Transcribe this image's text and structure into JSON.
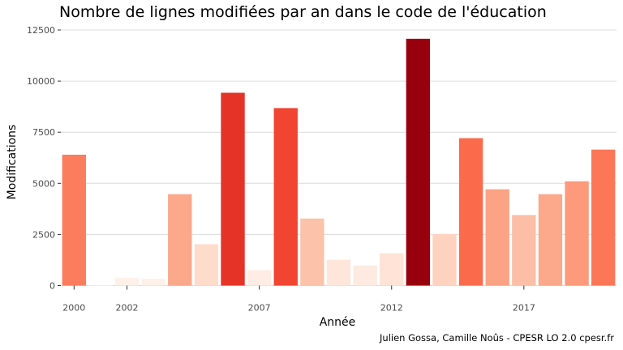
{
  "chart_data": {
    "type": "bar",
    "title": "Nombre de lignes modifiées par an dans le code de l'éducation",
    "xlabel": "Année",
    "ylabel": "Modifications",
    "caption": "Julien Gossa, Camille Noûs - CPESR LO 2.0 cpesr.fr",
    "x": [
      2000,
      2001,
      2002,
      2003,
      2004,
      2005,
      2006,
      2007,
      2008,
      2009,
      2010,
      2011,
      2012,
      2013,
      2014,
      2015,
      2016,
      2017,
      2018,
      2019,
      2020
    ],
    "values": [
      6400,
      30,
      380,
      340,
      4470,
      2020,
      9430,
      750,
      8680,
      3280,
      1260,
      980,
      1580,
      12070,
      2520,
      7210,
      4710,
      3450,
      4470,
      5100,
      6650
    ],
    "x_ticks": [
      "2000",
      "2002",
      "2007",
      "2012",
      "2017"
    ],
    "y_ticks": [
      "0",
      "2500",
      "5000",
      "7500",
      "10000",
      "12500"
    ],
    "ylim": [
      0,
      12500
    ],
    "grid": true,
    "legend": "none",
    "color_scale": {
      "low": "#fff5f0",
      "high": "#99000d"
    }
  }
}
